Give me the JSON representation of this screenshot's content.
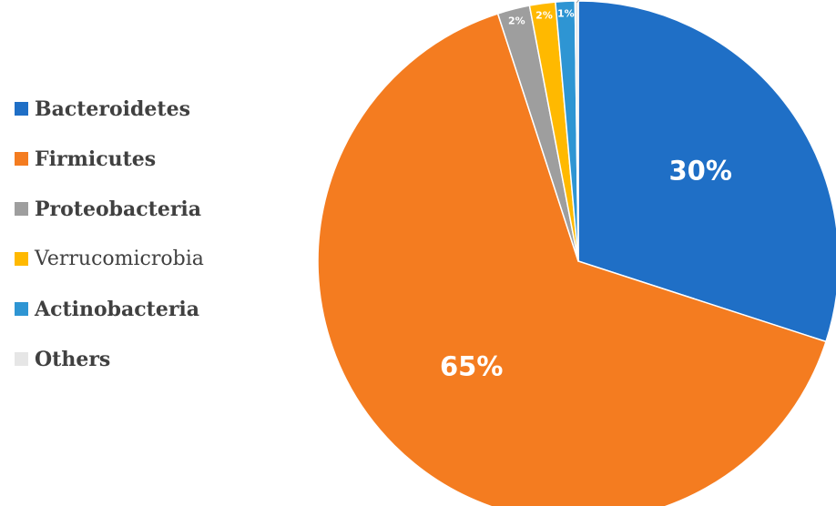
{
  "chart_data": {
    "type": "pie",
    "slices": [
      {
        "label": "Bacteroidetes",
        "value": 30,
        "data_label": "30%",
        "color": "#1f6fc6"
      },
      {
        "label": "Firmicutes",
        "value": 65,
        "data_label": "65%",
        "color": "#f47c20"
      },
      {
        "label": "Proteobacteria",
        "value": 2,
        "data_label": "2%",
        "color": "#9e9e9e"
      },
      {
        "label": "Verrucomicrobia",
        "value": 1.6,
        "data_label": "2%",
        "color": "#ffb900"
      },
      {
        "label": "Actinobacteria",
        "value": 1.2,
        "data_label": "1%",
        "color": "#2e95d3"
      },
      {
        "label": "Others",
        "value": 0.2,
        "data_label": "0%",
        "color": "#e6e6e6"
      }
    ],
    "legend_position": "left",
    "bold_legend_entries": [
      "Bacteroidetes",
      "Firmicutes",
      "Proteobacteria",
      "Actinobacteria",
      "Others"
    ]
  }
}
